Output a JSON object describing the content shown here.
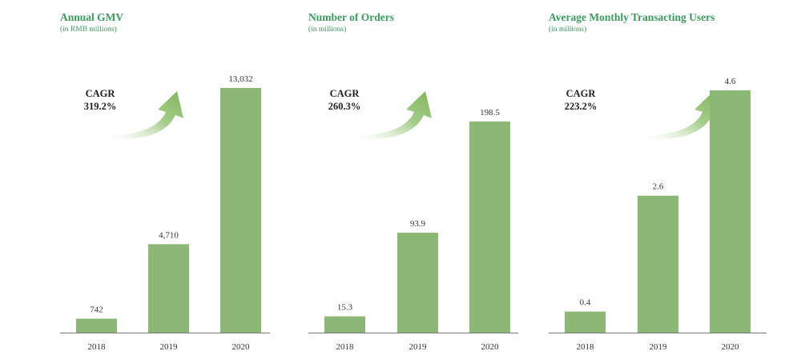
{
  "colors": {
    "bar": "#8cb876",
    "axis": "#777777",
    "title": "#3c9a5f",
    "arrow": "#7fb75a"
  },
  "chart_data": [
    {
      "type": "bar",
      "title": "Annual GMV",
      "subtitle": "(in RMB millions)",
      "categories": [
        "2018",
        "2019",
        "2020"
      ],
      "values": [
        742,
        4710,
        13032
      ],
      "value_labels": [
        "742",
        "4,710",
        "13,032"
      ],
      "cagr_label": "CAGR",
      "cagr_value": "319.2%",
      "ylim": [
        0,
        13032
      ]
    },
    {
      "type": "bar",
      "title": "Number of Orders",
      "subtitle": "(in millions)",
      "categories": [
        "2018",
        "2019",
        "2020"
      ],
      "values": [
        15.3,
        93.9,
        198.5
      ],
      "value_labels": [
        "15.3",
        "93.9",
        "198.5"
      ],
      "cagr_label": "CAGR",
      "cagr_value": "260.3%",
      "ylim": [
        0,
        230
      ]
    },
    {
      "type": "bar",
      "title": "Average Monthly Transacting Users",
      "subtitle": "(in millions)",
      "categories": [
        "2018",
        "2019",
        "2020"
      ],
      "values": [
        0.4,
        2.6,
        4.6
      ],
      "value_labels": [
        "0.4",
        "2.6",
        "4.6"
      ],
      "cagr_label": "CAGR",
      "cagr_value": "223.2%",
      "ylim": [
        0,
        4.6
      ]
    }
  ]
}
